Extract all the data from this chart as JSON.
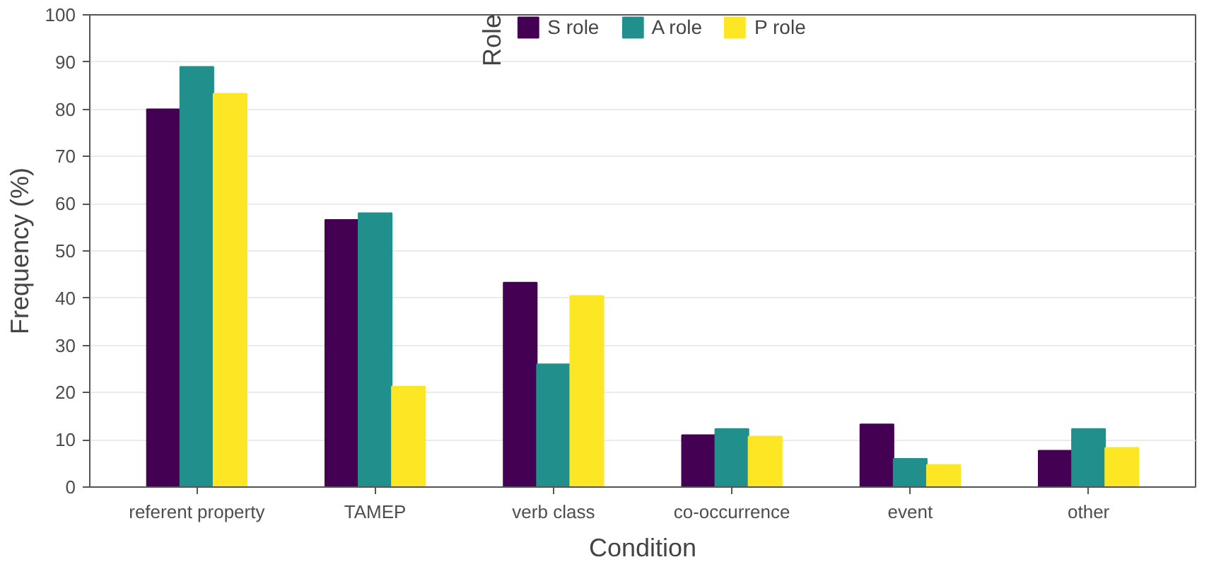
{
  "chart_data": {
    "type": "bar",
    "xlabel": "Condition",
    "ylabel": "Frequency (%)",
    "legend_title": "Role",
    "legend": "top",
    "categories": [
      "referent property",
      "TAMEP",
      "verb class",
      "co-occurrence",
      "event",
      "other"
    ],
    "series": [
      {
        "name": "S role",
        "color": "#440154",
        "values": [
          80,
          56.6,
          43.3,
          11,
          13.3,
          7.7
        ]
      },
      {
        "name": "A role",
        "color": "#21908c",
        "values": [
          89,
          58,
          26,
          12.3,
          6,
          12.3
        ]
      },
      {
        "name": "P role",
        "color": "#fde725",
        "values": [
          83.3,
          21.3,
          40.5,
          10.7,
          4.7,
          8.3
        ]
      }
    ],
    "ylim": [
      0,
      100
    ],
    "yticks": [
      0,
      10,
      20,
      30,
      40,
      50,
      60,
      70,
      80,
      90,
      100
    ],
    "grid": "y"
  }
}
